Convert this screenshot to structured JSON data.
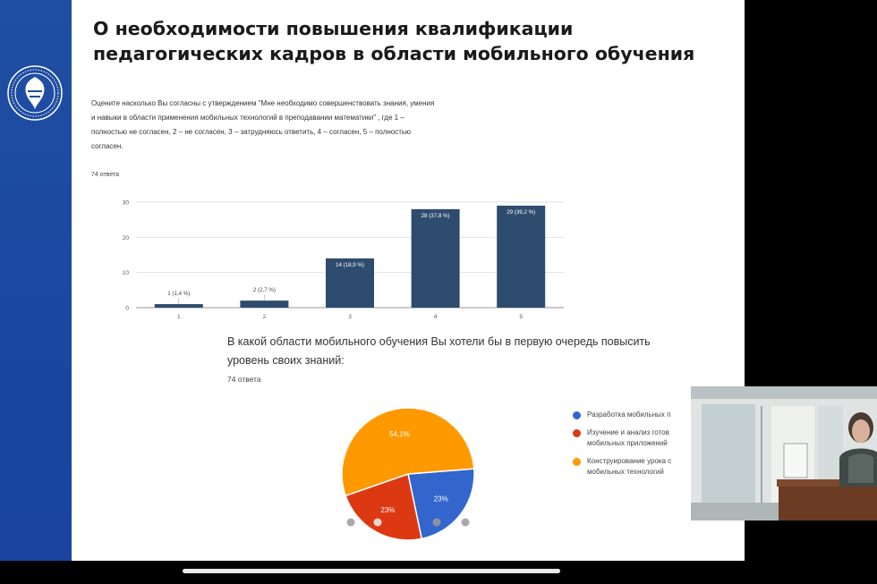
{
  "slide": {
    "title": "О необходимости повышения квалификации педагогических кадров в области мобильного обучения"
  },
  "survey1": {
    "question": "Оцените насколько Вы согласны с утверждением \"Мне необходимо совершенствовать знания, умения и навыки в области применения мобильных технологий в преподавании математики\" , где 1 – полностью не согласен, 2 – не согласен, 3 – затрудняюсь ответить, 4 – согласен, 5 – полностью согласен.",
    "responses": "74 ответа"
  },
  "survey2": {
    "question": "В какой области мобильного обучения Вы хотели бы в первую очередь повысить уровень своих знаний:",
    "responses": "74 ответа"
  },
  "chart_data": [
    {
      "type": "bar",
      "categories": [
        "1",
        "2",
        "3",
        "4",
        "5"
      ],
      "values": [
        1,
        2,
        14,
        28,
        29
      ],
      "data_labels": [
        "1 (1,4 %)",
        "2 (2,7 %)",
        "14 (18,9 %)",
        "28 (37,8 %)",
        "29 (39,2 %)"
      ],
      "ylim": [
        0,
        30
      ],
      "yticks": [
        "0",
        "10",
        "20",
        "30"
      ],
      "grid": true,
      "color": "#2e4c6d"
    },
    {
      "type": "pie",
      "labels": [
        "Разработка мобильных п",
        "Изучение и анализ готов\nмобильных приложений",
        "Конструирование урока с\nмобильных технологий"
      ],
      "values": [
        23,
        23,
        54.1
      ],
      "data_labels": [
        "23%",
        "23%",
        "54,1%"
      ],
      "colors": [
        "#3366cc",
        "#dc3912",
        "#ff9900"
      ],
      "legend": "right"
    }
  ]
}
